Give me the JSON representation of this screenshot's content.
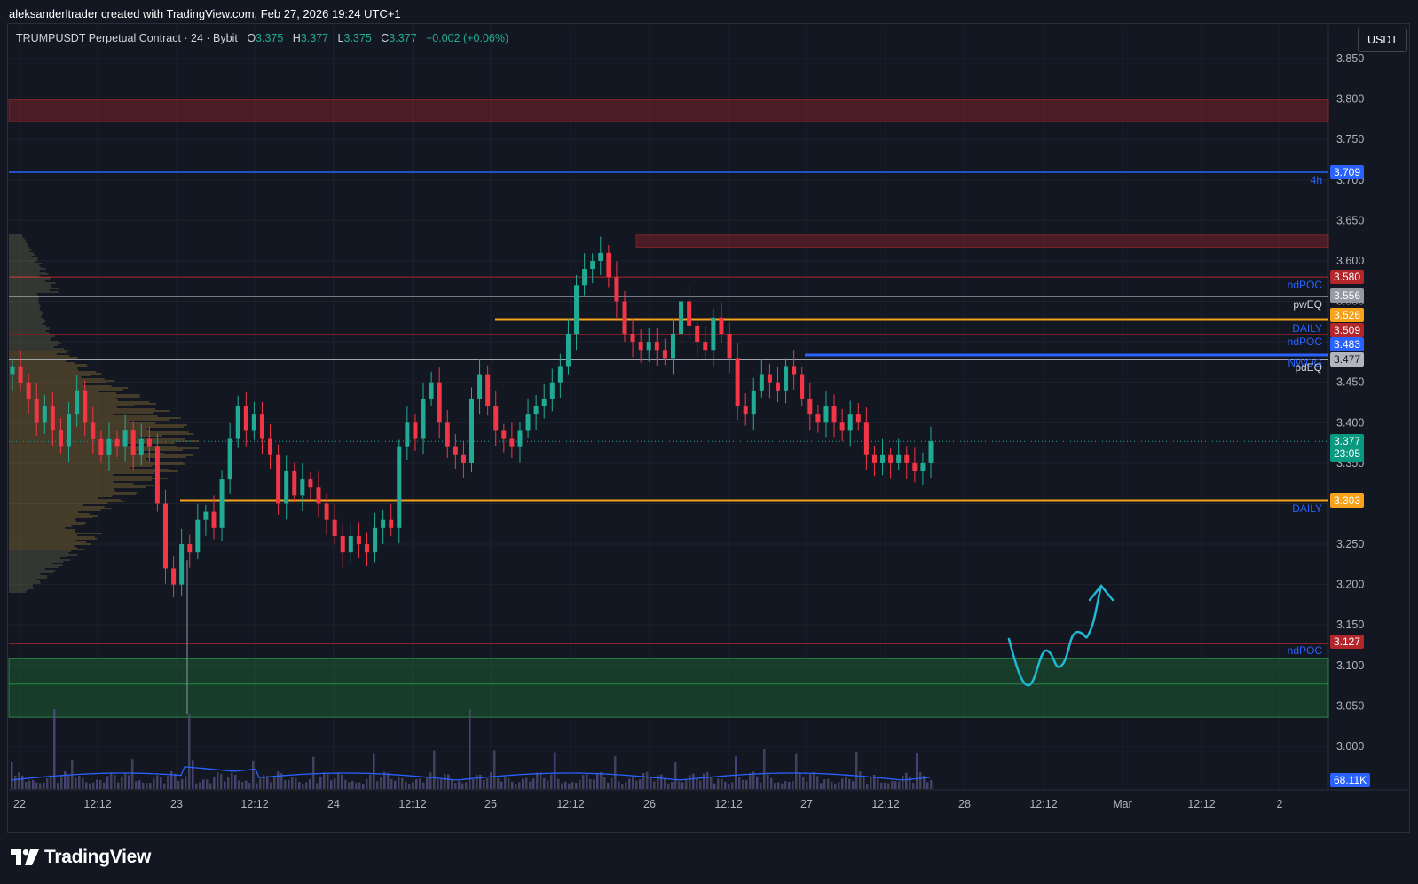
{
  "header": {
    "attribution": "aleksanderltrader created with TradingView.com, Feb 27, 2026 19:24 UTC+1"
  },
  "legend": {
    "symbol": "TRUMPUSDT Perpetual Contract · 24 · Bybit",
    "o_label": "O",
    "o": "3.375",
    "h_label": "H",
    "h": "3.377",
    "l_label": "L",
    "l": "3.375",
    "c_label": "C",
    "c": "3.377",
    "change": "+0.002 (+0.06%)"
  },
  "currency": "USDT",
  "price_axis": {
    "ticks": [
      "3.850",
      "3.800",
      "3.750",
      "3.700",
      "3.650",
      "3.600",
      "3.550",
      "3.500",
      "3.450",
      "3.400",
      "3.350",
      "3.300",
      "3.250",
      "3.200",
      "3.150",
      "3.100",
      "3.050",
      "3.000"
    ]
  },
  "time_axis": {
    "ticks": [
      "22",
      "12:12",
      "23",
      "12:12",
      "24",
      "12:12",
      "25",
      "12:12",
      "26",
      "12:12",
      "27",
      "12:12",
      "28",
      "12:12",
      "Mar",
      "12:12",
      "2"
    ]
  },
  "price_tags": [
    {
      "value": "3.709",
      "color": "#2962ff"
    },
    {
      "value": "3.580",
      "color": "#b2262c"
    },
    {
      "value": "3.556",
      "color": "#9598a1"
    },
    {
      "value": "3.526",
      "color": "#f7a21b"
    },
    {
      "value": "3.509",
      "color": "#b2262c"
    },
    {
      "value": "3.483",
      "color": "#2962ff"
    },
    {
      "value": "3.477",
      "color": "#b2b5be"
    },
    {
      "value": "3.303",
      "color": "#f7a21b"
    },
    {
      "value": "3.127",
      "color": "#b2262c"
    },
    {
      "value": "68.11K",
      "color": "#2962ff"
    }
  ],
  "current_price": {
    "value": "3.377",
    "countdown": "23:05",
    "color": "#089981"
  },
  "level_labels": [
    {
      "text": "4h",
      "color": "#2962ff"
    },
    {
      "text": "ndPOC",
      "color": "#2962ff"
    },
    {
      "text": "pwEQ",
      "color": "#d1d4dc"
    },
    {
      "text": "DAILY",
      "color": "#2962ff"
    },
    {
      "text": "ndPOC",
      "color": "#2962ff"
    },
    {
      "text": "NWOG",
      "color": "#2962ff"
    },
    {
      "text": "pdEQ",
      "color": "#d1d4dc"
    },
    {
      "text": "DAILY",
      "color": "#2962ff"
    },
    {
      "text": "ndPOC",
      "color": "#2962ff"
    }
  ],
  "colors": {
    "up": "#22ab94",
    "down": "#f23645",
    "background": "#131722",
    "orange": "#f7a21b",
    "blue_line": "#2962ff",
    "red_zone": "#b2262c",
    "green_zone": "#1e6b35",
    "arrow": "#1fb8d6"
  },
  "footer": {
    "brand": "TradingView"
  },
  "chart_data": {
    "type": "candlestick",
    "symbol": "TRUMPUSDT",
    "ylim": [
      2.97,
      3.87
    ],
    "grid": true,
    "levels": [
      3.709,
      3.58,
      3.556,
      3.526,
      3.509,
      3.483,
      3.477,
      3.303,
      3.127
    ],
    "zones": [
      {
        "from": 3.772,
        "to": 3.799,
        "color": "red"
      },
      {
        "from": 3.617,
        "to": 3.632,
        "color": "red"
      },
      {
        "from": 3.036,
        "to": 3.109,
        "color": "green"
      }
    ],
    "last_price": 3.377,
    "closes": [
      3.47,
      3.45,
      3.43,
      3.4,
      3.42,
      3.39,
      3.37,
      3.41,
      3.44,
      3.4,
      3.38,
      3.36,
      3.38,
      3.37,
      3.39,
      3.36,
      3.38,
      3.37,
      3.3,
      3.22,
      3.2,
      3.25,
      3.24,
      3.28,
      3.29,
      3.27,
      3.33,
      3.38,
      3.42,
      3.39,
      3.41,
      3.38,
      3.36,
      3.3,
      3.34,
      3.31,
      3.33,
      3.32,
      3.3,
      3.28,
      3.26,
      3.24,
      3.26,
      3.25,
      3.24,
      3.27,
      3.28,
      3.27,
      3.37,
      3.4,
      3.38,
      3.43,
      3.45,
      3.4,
      3.37,
      3.36,
      3.35,
      3.43,
      3.46,
      3.42,
      3.39,
      3.38,
      3.37,
      3.39,
      3.41,
      3.42,
      3.43,
      3.45,
      3.47,
      3.51,
      3.57,
      3.59,
      3.6,
      3.61,
      3.58,
      3.55,
      3.51,
      3.5,
      3.49,
      3.5,
      3.49,
      3.48,
      3.51,
      3.55,
      3.52,
      3.5,
      3.49,
      3.53,
      3.51,
      3.48,
      3.42,
      3.41,
      3.44,
      3.46,
      3.45,
      3.44,
      3.47,
      3.46,
      3.43,
      3.41,
      3.4,
      3.42,
      3.4,
      3.39,
      3.41,
      3.4,
      3.36,
      3.35,
      3.36,
      3.35,
      3.36,
      3.35,
      3.34,
      3.35,
      3.377
    ]
  }
}
